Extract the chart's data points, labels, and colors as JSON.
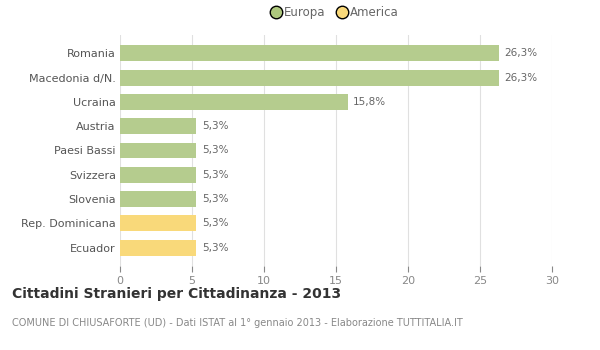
{
  "categories": [
    "Ecuador",
    "Rep. Dominicana",
    "Slovenia",
    "Svizzera",
    "Paesi Bassi",
    "Austria",
    "Ucraina",
    "Macedonia d/N.",
    "Romania"
  ],
  "values": [
    5.3,
    5.3,
    5.3,
    5.3,
    5.3,
    5.3,
    15.8,
    26.3,
    26.3
  ],
  "bar_colors": [
    "#f9d97a",
    "#f9d97a",
    "#b5cc8e",
    "#b5cc8e",
    "#b5cc8e",
    "#b5cc8e",
    "#b5cc8e",
    "#b5cc8e",
    "#b5cc8e"
  ],
  "labels": [
    "5,3%",
    "5,3%",
    "5,3%",
    "5,3%",
    "5,3%",
    "5,3%",
    "15,8%",
    "26,3%",
    "26,3%"
  ],
  "xlim": [
    0,
    30
  ],
  "xticks": [
    0,
    5,
    10,
    15,
    20,
    25,
    30
  ],
  "legend_europa_color": "#aec87e",
  "legend_america_color": "#f9d97a",
  "legend_europa_label": "Europa",
  "legend_america_label": "America",
  "title": "Cittadini Stranieri per Cittadinanza - 2013",
  "subtitle": "COMUNE DI CHIUSAFORTE (UD) - Dati ISTAT al 1° gennaio 2013 - Elaborazione TUTTITALIA.IT",
  "background_color": "#ffffff",
  "grid_color": "#e0e0e0",
  "bar_height": 0.65,
  "label_fontsize": 7.5,
  "title_fontsize": 10,
  "subtitle_fontsize": 7,
  "tick_label_fontsize": 8,
  "ytick_fontsize": 8
}
